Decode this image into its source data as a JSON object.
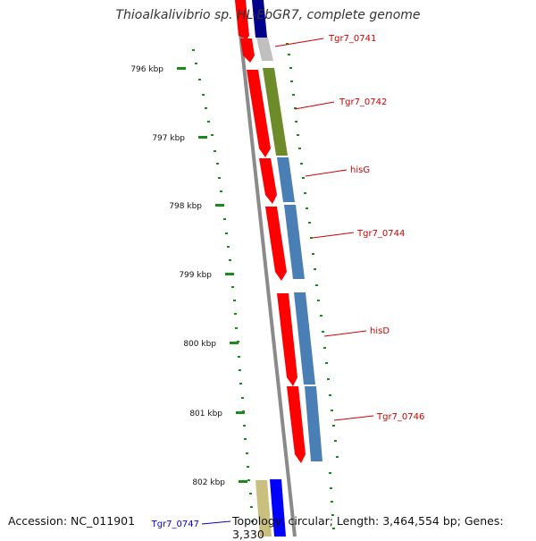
{
  "title": "Thioalkalivibrio sp. HL-EbGR7, complete genome",
  "accession": "Accession: NC_011901",
  "topology": "Topology: circular; Length: 3,464,554 bp; Genes: 3,330",
  "colors": {
    "backbone": "#8a8a8a",
    "cds_red": "#ff0000",
    "feature_blue": "#4a7fb5",
    "feature_olive": "#6e8b2a",
    "feature_navy": "#00008b",
    "feature_gray": "#c0c0c0",
    "feature_khaki": "#c9bf7e",
    "feature_bright_blue": "#0000ff",
    "tick_green": "#1a8a1a",
    "label_red": "#cc0000",
    "label_blue": "#0000cc"
  },
  "scale_ticks": [
    {
      "label": "796 kbp"
    },
    {
      "label": "797 kbp"
    },
    {
      "label": "798 kbp"
    },
    {
      "label": "799 kbp"
    },
    {
      "label": "800 kbp"
    },
    {
      "label": "801 kbp"
    },
    {
      "label": "802 kbp"
    }
  ],
  "gene_labels": [
    {
      "text": "Tgr7_0741",
      "color": "#cc0000"
    },
    {
      "text": "Tgr7_0742",
      "color": "#cc0000"
    },
    {
      "text": "hisG",
      "color": "#cc0000"
    },
    {
      "text": "Tgr7_0744",
      "color": "#cc0000"
    },
    {
      "text": "hisD",
      "color": "#cc0000"
    },
    {
      "text": "Tgr7_0746",
      "color": "#cc0000"
    },
    {
      "text": "Tgr7_0747",
      "color": "#0000cc"
    }
  ]
}
